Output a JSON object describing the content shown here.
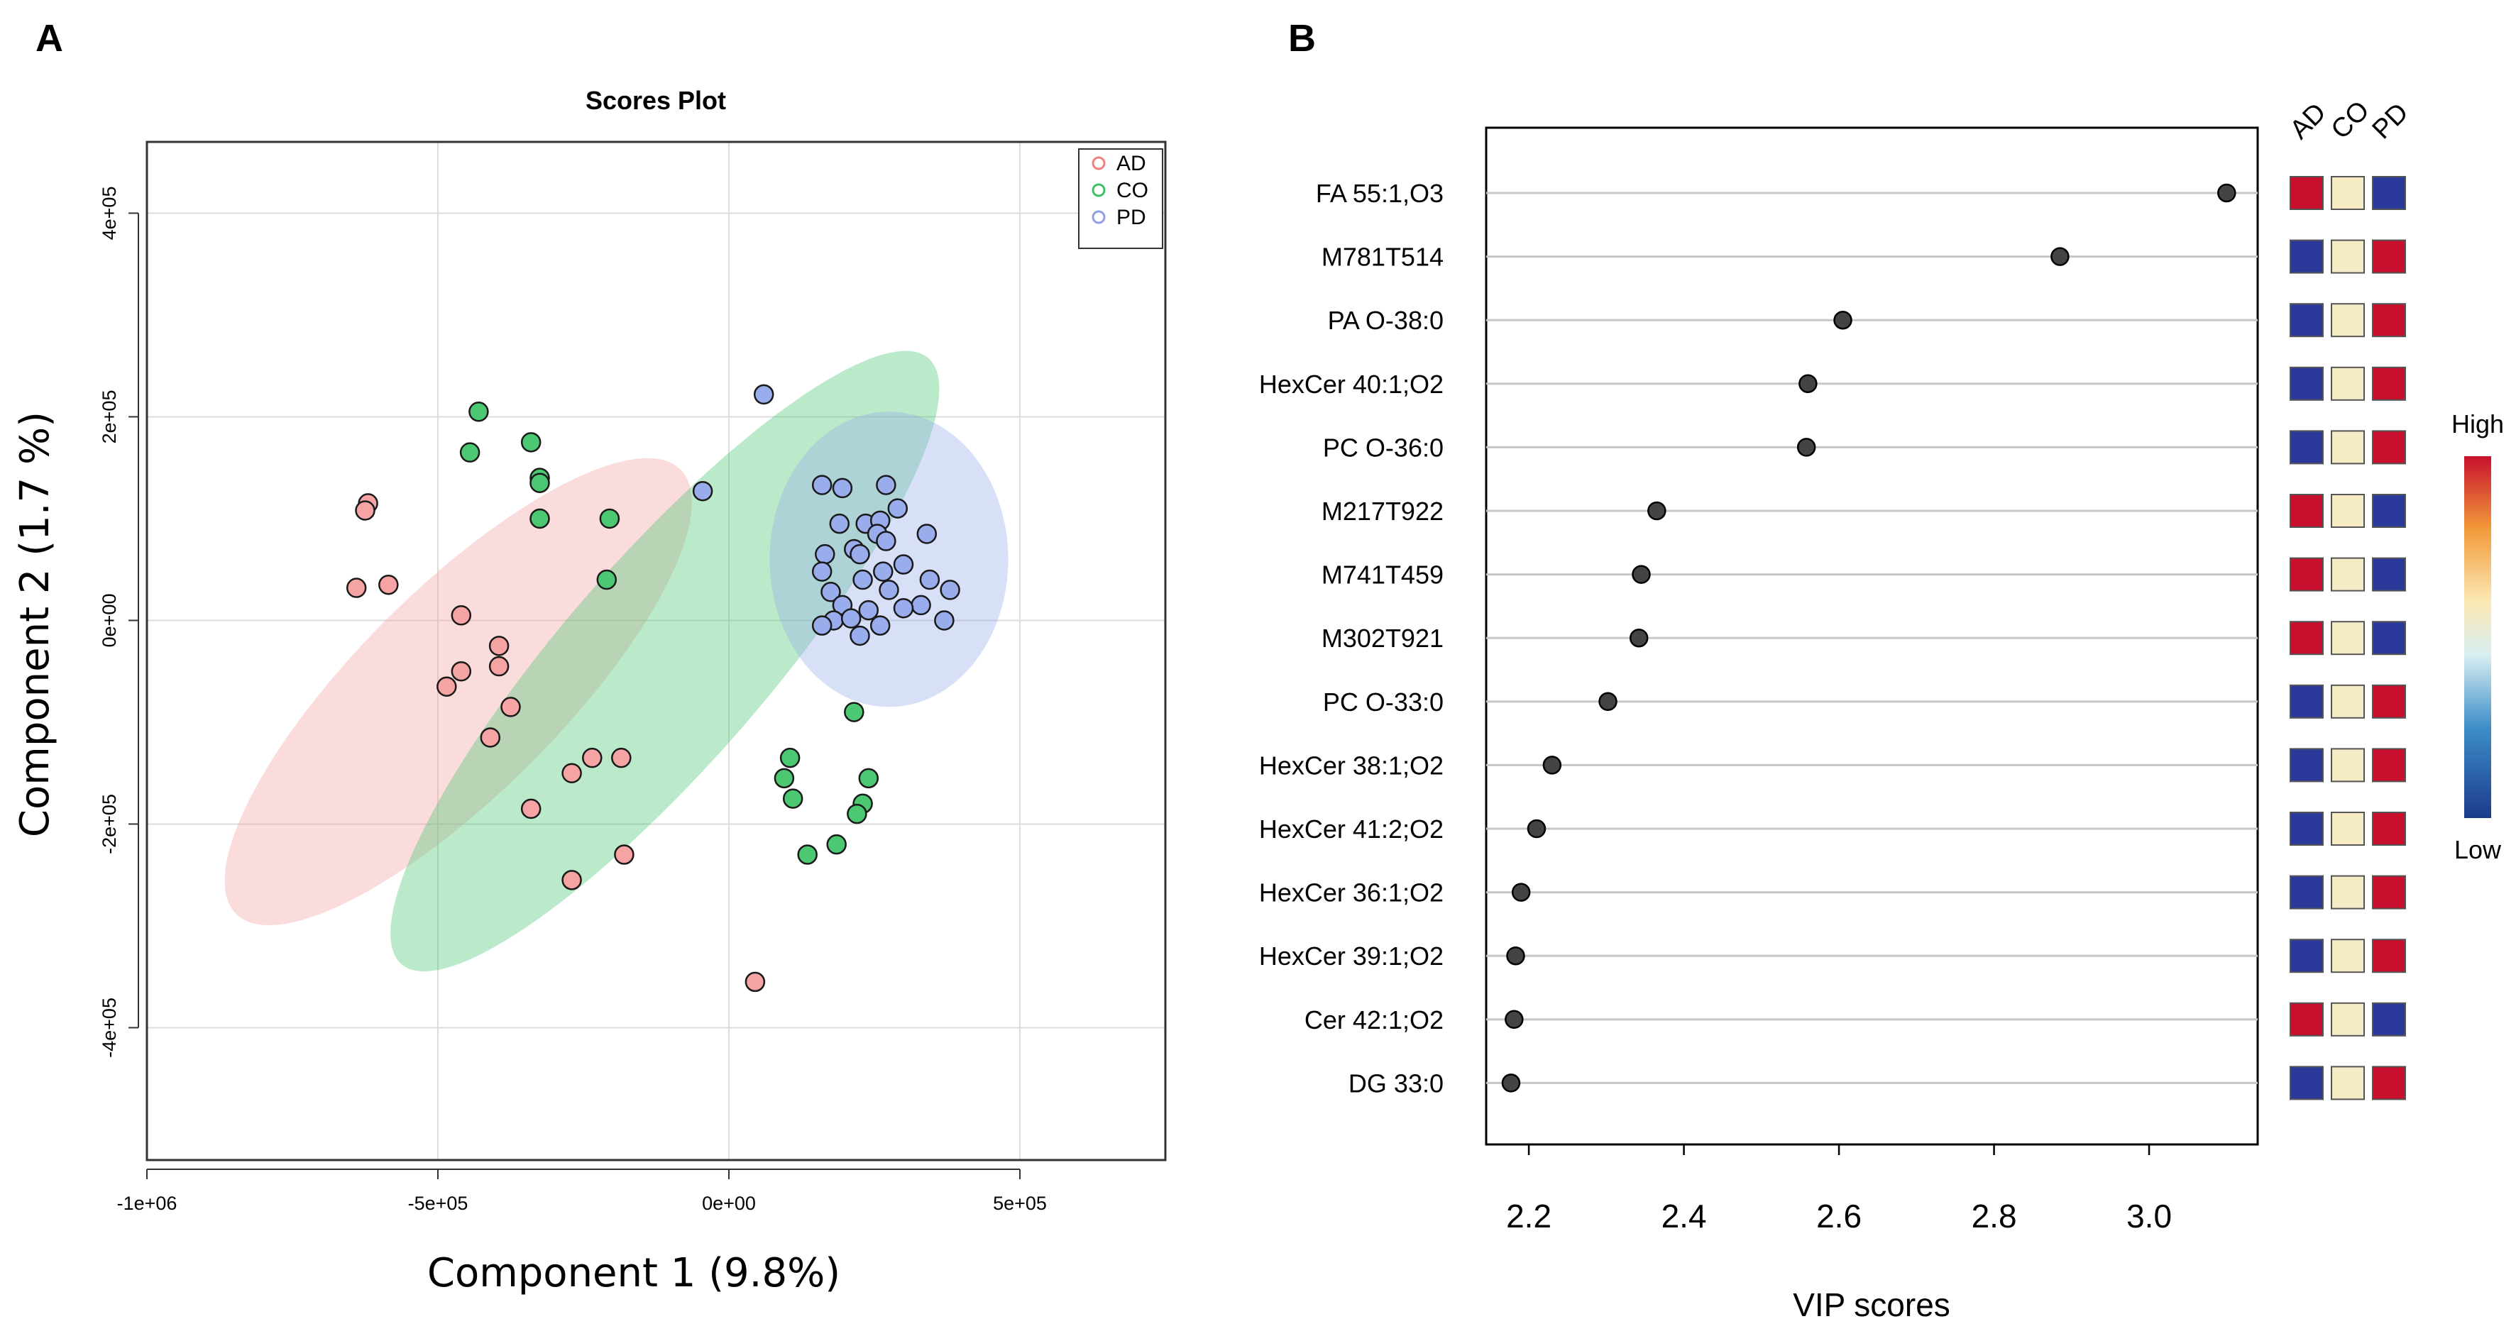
{
  "chart_data": [
    {
      "panel": "A",
      "type": "scatter",
      "title": "Scores Plot",
      "xlabel": "Component 1 (9.8%)",
      "ylabel": "Component 2 (1.7 %)",
      "xlim": [
        -1000000,
        750000
      ],
      "ylim": [
        -530000,
        470000
      ],
      "x_ticks": [
        {
          "value": -1000000,
          "label": "-1e+06"
        },
        {
          "value": -500000,
          "label": "-5e+05"
        },
        {
          "value": 0,
          "label": "0e+00"
        },
        {
          "value": 500000,
          "label": "5e+05"
        }
      ],
      "y_ticks": [
        {
          "value": 400000,
          "label": "4e+05"
        },
        {
          "value": 200000,
          "label": "2e+05"
        },
        {
          "value": 0,
          "label": "0e+00"
        },
        {
          "value": -200000,
          "label": "-2e+05"
        },
        {
          "value": -400000,
          "label": "-4e+05"
        }
      ],
      "legend_position": "top-right",
      "series": [
        {
          "name": "AD",
          "color": "#f08080",
          "fill": "#f5a3a3",
          "ellipse": {
            "cx": -465000,
            "cy": -70000,
            "rx": 540000,
            "ry": 100000,
            "angle_deg": 45
          },
          "points": [
            [
              -620000,
              115000
            ],
            [
              -625000,
              108000
            ],
            [
              -640000,
              32000
            ],
            [
              -585000,
              35000
            ],
            [
              -460000,
              5000
            ],
            [
              -395000,
              -25000
            ],
            [
              -395000,
              -45000
            ],
            [
              -460000,
              -50000
            ],
            [
              -485000,
              -65000
            ],
            [
              -375000,
              -85000
            ],
            [
              -410000,
              -115000
            ],
            [
              -235000,
              -135000
            ],
            [
              -185000,
              -135000
            ],
            [
              -270000,
              -150000
            ],
            [
              -340000,
              -185000
            ],
            [
              -180000,
              -230000
            ],
            [
              -270000,
              -255000
            ],
            [
              45000,
              -355000
            ]
          ]
        },
        {
          "name": "CO",
          "color": "#3cc060",
          "fill": "#4cc873",
          "ellipse": {
            "cx": -110000,
            "cy": -40000,
            "rx": 690000,
            "ry": 100000,
            "angle_deg": 49
          },
          "points": [
            [
              -430000,
              205000
            ],
            [
              -445000,
              165000
            ],
            [
              -340000,
              175000
            ],
            [
              -325000,
              140000
            ],
            [
              -325000,
              135000
            ],
            [
              -205000,
              100000
            ],
            [
              -325000,
              100000
            ],
            [
              -210000,
              40000
            ],
            [
              215000,
              -90000
            ],
            [
              105000,
              -135000
            ],
            [
              95000,
              -155000
            ],
            [
              240000,
              -155000
            ],
            [
              110000,
              -175000
            ],
            [
              230000,
              -180000
            ],
            [
              220000,
              -190000
            ],
            [
              185000,
              -220000
            ],
            [
              135000,
              -230000
            ]
          ]
        },
        {
          "name": "PD",
          "color": "#8ca0e6",
          "fill": "#99aded",
          "ellipse": {
            "cx": 275000,
            "cy": 60000,
            "rx": 205000,
            "ry": 145000,
            "angle_deg": 0
          },
          "points": [
            [
              60000,
              222000
            ],
            [
              -45000,
              127000
            ],
            [
              160000,
              133000
            ],
            [
              195000,
              130000
            ],
            [
              270000,
              133000
            ],
            [
              290000,
              110000
            ],
            [
              190000,
              95000
            ],
            [
              235000,
              95000
            ],
            [
              260000,
              98000
            ],
            [
              340000,
              85000
            ],
            [
              255000,
              85000
            ],
            [
              270000,
              78000
            ],
            [
              215000,
              70000
            ],
            [
              225000,
              65000
            ],
            [
              165000,
              65000
            ],
            [
              300000,
              55000
            ],
            [
              160000,
              48000
            ],
            [
              265000,
              48000
            ],
            [
              345000,
              40000
            ],
            [
              380000,
              30000
            ],
            [
              230000,
              40000
            ],
            [
              275000,
              30000
            ],
            [
              175000,
              28000
            ],
            [
              195000,
              15000
            ],
            [
              330000,
              15000
            ],
            [
              300000,
              12000
            ],
            [
              240000,
              10000
            ],
            [
              180000,
              0
            ],
            [
              210000,
              2000
            ],
            [
              370000,
              0
            ],
            [
              160000,
              -5000
            ],
            [
              225000,
              -15000
            ],
            [
              260000,
              -5000
            ]
          ]
        }
      ]
    },
    {
      "panel": "B",
      "type": "scatter",
      "xlabel": "VIP scores",
      "xlim": [
        2.145,
        3.14
      ],
      "x_ticks": [
        2.2,
        2.4,
        2.6,
        2.8,
        3.0
      ],
      "x_tick_labels": [
        "2.2",
        "2.4",
        "2.6",
        "2.8",
        "3.0"
      ],
      "features": [
        "FA 55:1,O3",
        "M781T514",
        "PA O-38:0",
        "HexCer 40:1;O2",
        "PC O-36:0",
        "M217T922",
        "M741T459",
        "M302T921",
        "PC O-33:0",
        "HexCer 38:1;O2",
        "HexCer 41:2;O2",
        "HexCer 36:1;O2",
        "HexCer 39:1;O2",
        "Cer 42:1;O2",
        "DG 33:0"
      ],
      "vip": [
        3.1,
        2.885,
        2.605,
        2.56,
        2.558,
        2.365,
        2.345,
        2.342,
        2.302,
        2.23,
        2.21,
        2.19,
        2.183,
        2.181,
        2.177
      ],
      "groups": [
        "AD",
        "CO",
        "PD"
      ],
      "heatmap_levels": [
        [
          "high",
          "mid",
          "low"
        ],
        [
          "low",
          "mid",
          "high"
        ],
        [
          "low",
          "mid",
          "high"
        ],
        [
          "low",
          "mid",
          "high"
        ],
        [
          "low",
          "mid",
          "high"
        ],
        [
          "high",
          "mid",
          "low"
        ],
        [
          "high",
          "mid",
          "low"
        ],
        [
          "high",
          "mid",
          "low"
        ],
        [
          "low",
          "mid",
          "high"
        ],
        [
          "low",
          "mid",
          "high"
        ],
        [
          "low",
          "mid",
          "high"
        ],
        [
          "low",
          "mid",
          "high"
        ],
        [
          "low",
          "mid",
          "high"
        ],
        [
          "high",
          "mid",
          "low"
        ],
        [
          "low",
          "mid",
          "high"
        ]
      ],
      "colorbar": {
        "high_label": "High",
        "low_label": "Low"
      }
    }
  ],
  "panel_labels": {
    "a": "A",
    "b": "B"
  },
  "colors": {
    "high": "#c8102e",
    "mid": "#f5ebc4",
    "low": "#2b3a9a",
    "point_b": "#444444"
  }
}
